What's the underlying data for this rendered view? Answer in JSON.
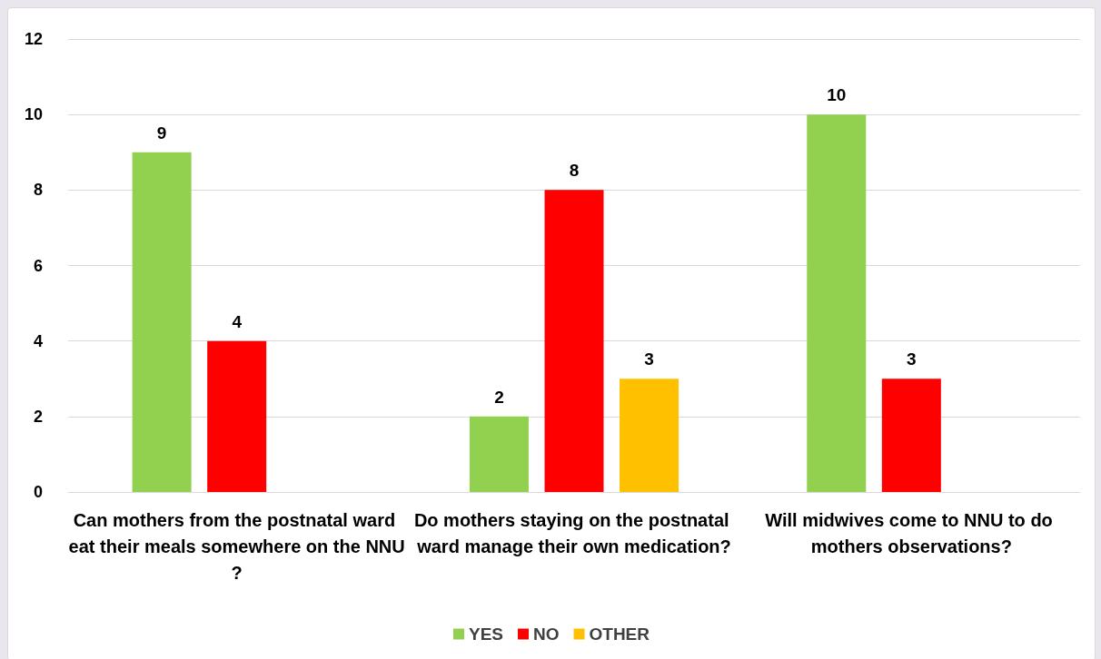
{
  "chart_data": {
    "type": "bar",
    "categories": [
      "Can mothers from the postnatal ward eat their meals somewhere on the NNU?",
      "Do mothers staying on the postnatal ward manage their own medication?",
      "Will midwives come to NNU to do mothers observations?"
    ],
    "series": [
      {
        "name": "YES",
        "color": "#92d050",
        "values": [
          9,
          2,
          10
        ]
      },
      {
        "name": "NO",
        "color": "#ff0000",
        "values": [
          4,
          8,
          3
        ]
      },
      {
        "name": "OTHER",
        "color": "#ffc000",
        "values": [
          null,
          3,
          null
        ]
      }
    ],
    "ylim": [
      0,
      12
    ],
    "yticks": [
      0,
      2,
      4,
      6,
      8,
      10,
      12
    ],
    "grid": "y",
    "legend": "bottom",
    "data_labels": true
  }
}
